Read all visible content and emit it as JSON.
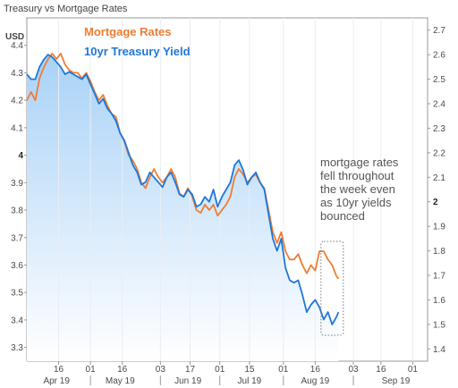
{
  "chart_data": {
    "type": "line",
    "title": "Treasury vs Mortgage Rates",
    "ylabel_left": "USD",
    "y_left": {
      "range": [
        3.25,
        4.5
      ],
      "ticks": [
        "4.4",
        "4.3",
        "4.2",
        "4.1",
        "4",
        "3.9",
        "3.8",
        "3.7",
        "3.6",
        "3.5",
        "3.4",
        "3.3"
      ],
      "ticks_values": [
        4.4,
        4.3,
        4.2,
        4.1,
        4.0,
        3.9,
        3.8,
        3.7,
        3.6,
        3.5,
        3.4,
        3.3
      ]
    },
    "y_right": {
      "range": [
        1.35,
        2.75
      ],
      "ticks": [
        "2.7",
        "2.6",
        "2.5",
        "2.4",
        "2.3",
        "2.2",
        "2.1",
        "2",
        "1.9",
        "1.8",
        "1.7",
        "1.6",
        "1.5",
        "1.4"
      ],
      "ticks_values": [
        2.7,
        2.6,
        2.5,
        2.4,
        2.3,
        2.2,
        2.1,
        2.0,
        1.9,
        1.8,
        1.7,
        1.6,
        1.5,
        1.4
      ]
    },
    "x_ticks": [
      {
        "label": "16",
        "day": 15
      },
      {
        "label": "01",
        "day": 30
      },
      {
        "label": "16",
        "day": 45
      },
      {
        "label": "03",
        "day": 63
      },
      {
        "label": "17",
        "day": 77
      },
      {
        "label": "01",
        "day": 91
      },
      {
        "label": "15",
        "day": 105
      },
      {
        "label": "01",
        "day": 121
      },
      {
        "label": "16",
        "day": 136
      },
      {
        "label": "03",
        "day": 154
      },
      {
        "label": "16",
        "day": 167
      },
      {
        "label": "01",
        "day": 182
      }
    ],
    "x_months": [
      {
        "label": "Apr 19",
        "day": 8
      },
      {
        "label": "May 19",
        "day": 38
      },
      {
        "label": "Jun 19",
        "day": 70
      },
      {
        "label": "Jul 19",
        "day": 99
      },
      {
        "label": "Aug 19",
        "day": 130
      },
      {
        "label": "Sep 19",
        "day": 168
      }
    ],
    "x_range": [
      0,
      189
    ],
    "series": [
      {
        "name": "Mortgage Rates",
        "axis": "left",
        "color": "#ef7d33",
        "points": [
          [
            0,
            4.2
          ],
          [
            2,
            4.23
          ],
          [
            4,
            4.2
          ],
          [
            6,
            4.28
          ],
          [
            8,
            4.32
          ],
          [
            10,
            4.35
          ],
          [
            12,
            4.37
          ],
          [
            14,
            4.35
          ],
          [
            16,
            4.37
          ],
          [
            18,
            4.33
          ],
          [
            20,
            4.31
          ],
          [
            22,
            4.3
          ],
          [
            24,
            4.3
          ],
          [
            26,
            4.28
          ],
          [
            28,
            4.3
          ],
          [
            30,
            4.27
          ],
          [
            32,
            4.23
          ],
          [
            34,
            4.2
          ],
          [
            36,
            4.22
          ],
          [
            38,
            4.18
          ],
          [
            40,
            4.15
          ],
          [
            42,
            4.14
          ],
          [
            44,
            4.08
          ],
          [
            46,
            4.05
          ],
          [
            48,
            4.0
          ],
          [
            50,
            3.98
          ],
          [
            52,
            3.95
          ],
          [
            54,
            3.9
          ],
          [
            56,
            3.88
          ],
          [
            58,
            3.92
          ],
          [
            60,
            3.95
          ],
          [
            62,
            3.92
          ],
          [
            64,
            3.9
          ],
          [
            66,
            3.92
          ],
          [
            68,
            3.95
          ],
          [
            70,
            3.92
          ],
          [
            72,
            3.86
          ],
          [
            74,
            3.85
          ],
          [
            76,
            3.88
          ],
          [
            78,
            3.85
          ],
          [
            80,
            3.8
          ],
          [
            82,
            3.79
          ],
          [
            84,
            3.82
          ],
          [
            86,
            3.8
          ],
          [
            88,
            3.82
          ],
          [
            90,
            3.78
          ],
          [
            92,
            3.8
          ],
          [
            94,
            3.82
          ],
          [
            96,
            3.85
          ],
          [
            98,
            3.92
          ],
          [
            100,
            3.95
          ],
          [
            102,
            3.93
          ],
          [
            104,
            3.9
          ],
          [
            106,
            3.92
          ],
          [
            108,
            3.93
          ],
          [
            110,
            3.9
          ],
          [
            112,
            3.88
          ],
          [
            114,
            3.8
          ],
          [
            116,
            3.72
          ],
          [
            118,
            3.68
          ],
          [
            120,
            3.72
          ],
          [
            122,
            3.65
          ],
          [
            124,
            3.62
          ],
          [
            126,
            3.62
          ],
          [
            128,
            3.64
          ],
          [
            130,
            3.6
          ],
          [
            132,
            3.57
          ],
          [
            134,
            3.6
          ],
          [
            136,
            3.58
          ],
          [
            138,
            3.65
          ],
          [
            140,
            3.65
          ],
          [
            142,
            3.62
          ],
          [
            144,
            3.6
          ],
          [
            146,
            3.56
          ],
          [
            147,
            3.55
          ]
        ]
      },
      {
        "name": "10yr Treasury Yield",
        "axis": "right",
        "color": "#1f77d8",
        "points": [
          [
            0,
            2.52
          ],
          [
            2,
            2.5
          ],
          [
            4,
            2.5
          ],
          [
            6,
            2.55
          ],
          [
            8,
            2.58
          ],
          [
            10,
            2.6
          ],
          [
            12,
            2.59
          ],
          [
            14,
            2.57
          ],
          [
            16,
            2.55
          ],
          [
            18,
            2.52
          ],
          [
            20,
            2.53
          ],
          [
            22,
            2.52
          ],
          [
            24,
            2.51
          ],
          [
            26,
            2.5
          ],
          [
            28,
            2.52
          ],
          [
            30,
            2.48
          ],
          [
            32,
            2.44
          ],
          [
            34,
            2.4
          ],
          [
            36,
            2.42
          ],
          [
            38,
            2.38
          ],
          [
            40,
            2.36
          ],
          [
            42,
            2.33
          ],
          [
            44,
            2.28
          ],
          [
            46,
            2.25
          ],
          [
            48,
            2.2
          ],
          [
            50,
            2.15
          ],
          [
            52,
            2.12
          ],
          [
            54,
            2.07
          ],
          [
            56,
            2.08
          ],
          [
            58,
            2.12
          ],
          [
            60,
            2.1
          ],
          [
            62,
            2.08
          ],
          [
            64,
            2.06
          ],
          [
            66,
            2.1
          ],
          [
            68,
            2.12
          ],
          [
            70,
            2.08
          ],
          [
            72,
            2.03
          ],
          [
            74,
            2.02
          ],
          [
            76,
            2.05
          ],
          [
            78,
            2.03
          ],
          [
            80,
            1.98
          ],
          [
            82,
            1.99
          ],
          [
            84,
            2.02
          ],
          [
            86,
            2.0
          ],
          [
            88,
            2.05
          ],
          [
            90,
            1.98
          ],
          [
            92,
            2.02
          ],
          [
            94,
            2.05
          ],
          [
            96,
            2.08
          ],
          [
            98,
            2.15
          ],
          [
            100,
            2.17
          ],
          [
            102,
            2.13
          ],
          [
            104,
            2.07
          ],
          [
            106,
            2.1
          ],
          [
            108,
            2.12
          ],
          [
            110,
            2.08
          ],
          [
            112,
            2.05
          ],
          [
            114,
            1.95
          ],
          [
            116,
            1.85
          ],
          [
            118,
            1.8
          ],
          [
            120,
            1.85
          ],
          [
            122,
            1.73
          ],
          [
            124,
            1.68
          ],
          [
            126,
            1.67
          ],
          [
            128,
            1.68
          ],
          [
            130,
            1.62
          ],
          [
            132,
            1.55
          ],
          [
            134,
            1.58
          ],
          [
            136,
            1.6
          ],
          [
            138,
            1.57
          ],
          [
            140,
            1.52
          ],
          [
            142,
            1.55
          ],
          [
            144,
            1.5
          ],
          [
            146,
            1.53
          ],
          [
            147,
            1.55
          ]
        ]
      }
    ],
    "annotation": {
      "lines": [
        "mortgage rates",
        "fell throughout",
        "the week even",
        "as 10yr yields",
        "bounced"
      ],
      "box_x_range": [
        140,
        148
      ]
    }
  }
}
